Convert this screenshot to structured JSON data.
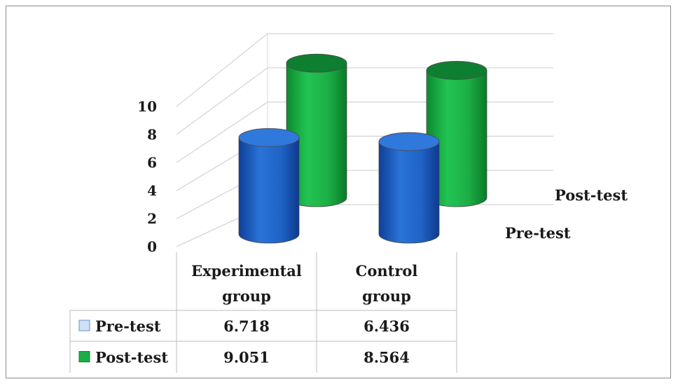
{
  "chart_data": {
    "type": "bar",
    "style": "3d-cylinder",
    "categories": [
      "Experimental group",
      "Control group"
    ],
    "category_lines": [
      [
        "Experimental",
        "group"
      ],
      [
        "Control",
        "group"
      ]
    ],
    "series": [
      {
        "name": "Pre-test",
        "values": [
          6.718,
          6.436
        ],
        "color": "#1f63c6"
      },
      {
        "name": "Post-test",
        "values": [
          9.051,
          8.564
        ],
        "color": "#1cae45"
      }
    ],
    "table_values": [
      [
        "6.718",
        "6.436"
      ],
      [
        "9.051",
        "8.564"
      ]
    ],
    "y_ticks": [
      "0",
      "2",
      "4",
      "6",
      "8",
      "10"
    ],
    "ylim": [
      0,
      10
    ],
    "depth_labels": [
      "Pre-test",
      "Post-test"
    ],
    "legend_placement": "data-table",
    "grid": true
  }
}
